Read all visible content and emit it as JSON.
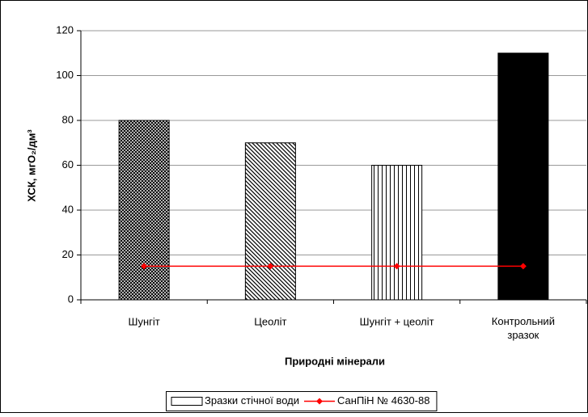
{
  "chart_data": {
    "type": "bar",
    "categories": [
      "Шунгіт",
      "Цеоліт",
      "Шунгіт + цеоліт",
      "Контрольний\nзразок"
    ],
    "xlabel": "Природні мінерали",
    "ylabel": "ХСК, мгО₂/дм³",
    "series": [
      {
        "name": "Зразки стічної води",
        "type": "bar",
        "color": "#000000",
        "patterns": [
          "crosshatch",
          "diagonal",
          "vertical",
          "solid"
        ],
        "values": [
          80,
          70,
          60,
          110
        ]
      },
      {
        "name": "СанПіН № 4630-88",
        "type": "line",
        "color": "#ff0000",
        "values": [
          15,
          15,
          15,
          15
        ]
      }
    ],
    "ylim": [
      0,
      120
    ],
    "yticks": [
      0,
      20,
      40,
      60,
      80,
      100,
      120
    ],
    "grid": true,
    "legend": "bottom"
  }
}
